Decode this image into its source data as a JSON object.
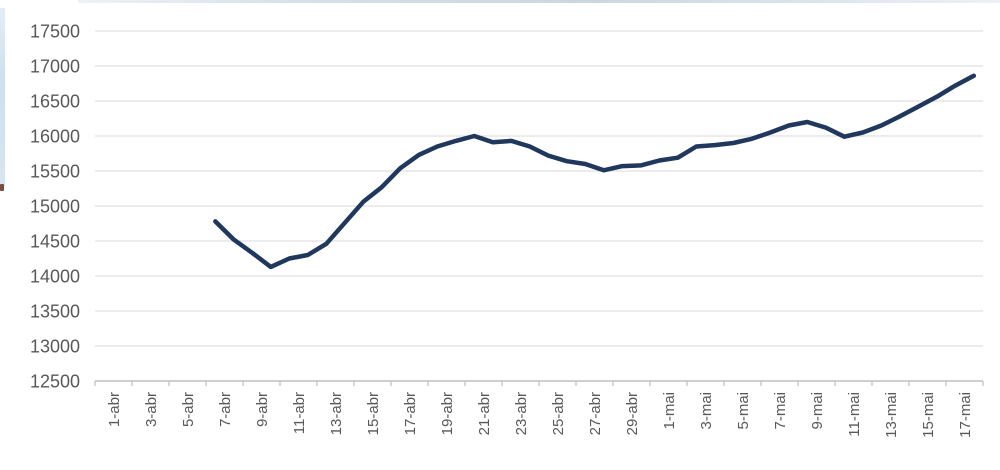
{
  "chart_data": {
    "type": "line",
    "title": "",
    "xlabel": "",
    "ylabel": "",
    "ylim": [
      12500,
      17500
    ],
    "y_tick_step": 500,
    "y_ticks": [
      12500,
      13000,
      13500,
      14000,
      14500,
      15000,
      15500,
      16000,
      16500,
      17000,
      17500
    ],
    "x_tick_labels": [
      "1-abr",
      "3-abr",
      "5-abr",
      "7-abr",
      "9-abr",
      "11-abr",
      "13-abr",
      "15-abr",
      "17-abr",
      "19-abr",
      "21-abr",
      "23-abr",
      "25-abr",
      "27-abr",
      "29-abr",
      "1-mai",
      "3-mai",
      "5-mai",
      "7-mai",
      "9-mai",
      "11-mai",
      "13-mai",
      "15-mai",
      "17-mai"
    ],
    "x_domain": {
      "first_day_label": "1-abr",
      "last_day_label": "18-mai",
      "days_total": 48,
      "tick_every_days": 2
    },
    "grid": true,
    "legend_position": "none",
    "series": [
      {
        "name": "price-index-line",
        "color": "#21385e",
        "start_day_offset": 6,
        "dates": [
          "7-abr",
          "8-abr",
          "9-abr",
          "10-abr",
          "11-abr",
          "12-abr",
          "13-abr",
          "14-abr",
          "15-abr",
          "16-abr",
          "17-abr",
          "18-abr",
          "19-abr",
          "20-abr",
          "21-abr",
          "22-abr",
          "23-abr",
          "24-abr",
          "25-abr",
          "26-abr",
          "27-abr",
          "28-abr",
          "29-abr",
          "30-abr",
          "1-mai",
          "2-mai",
          "3-mai",
          "4-mai",
          "5-mai",
          "6-mai",
          "7-mai",
          "8-mai",
          "9-mai",
          "10-mai",
          "11-mai",
          "12-mai",
          "13-mai",
          "14-mai",
          "15-mai",
          "16-mai",
          "17-mai",
          "18-mai"
        ],
        "values": [
          14780,
          14520,
          14330,
          14130,
          14250,
          14300,
          14460,
          14760,
          15060,
          15270,
          15540,
          15730,
          15850,
          15930,
          16000,
          15910,
          15930,
          15850,
          15720,
          15640,
          15600,
          15510,
          15570,
          15580,
          15650,
          15690,
          15850,
          15870,
          15900,
          15960,
          16050,
          16150,
          16200,
          16120,
          15990,
          16050,
          16150,
          16280,
          16420,
          16560,
          16720,
          16860
        ]
      }
    ],
    "colors": {
      "line": "#21385e",
      "gridline": "#d9d9d9",
      "axis_line": "#bfbfbf",
      "tick_mark": "#bfbfbf",
      "tick_label": "#595959",
      "background": "#ffffff"
    }
  }
}
